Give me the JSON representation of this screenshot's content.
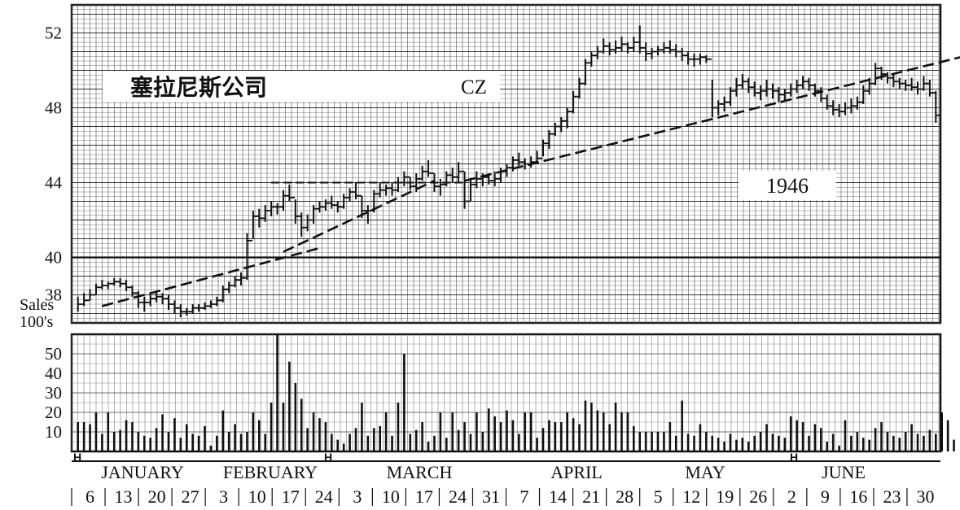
{
  "chart_data": {
    "type": "bar",
    "title": "塞拉尼斯公司",
    "ticker": "CZ",
    "year": "1946",
    "price_axis": {
      "ticks": [
        "52",
        "48",
        "44",
        "40",
        "38"
      ],
      "ylim": [
        36.5,
        53.5
      ]
    },
    "volume_axis": {
      "label_line1": "Sales",
      "label_line2": "100's",
      "ticks": [
        "50",
        "40",
        "30",
        "20",
        "10"
      ],
      "ylim": [
        0,
        60
      ]
    },
    "months": [
      "JANUARY",
      "FEBRUARY",
      "MARCH",
      "APRIL",
      "MAY",
      "JUNE"
    ],
    "week_dates": [
      "6",
      "13",
      "20",
      "27",
      "3",
      "10",
      "17",
      "24",
      "3",
      "10",
      "17",
      "24",
      "31",
      "7",
      "14",
      "21",
      "28",
      "5",
      "12",
      "19",
      "26",
      "2",
      "9",
      "16",
      "23",
      "30"
    ],
    "holiday_marker": "H",
    "grid": true,
    "price_lines": [
      {
        "label": "40",
        "value": 40
      },
      {
        "label": "44",
        "value": 44
      }
    ],
    "trend_lines": [
      {
        "name": "",
        "from": {
          "day": 4,
          "price": 37.4
        },
        "to": {
          "day": 40,
          "price": 40.5
        }
      },
      {
        "name": "",
        "from": {
          "day": 34,
          "price": 40.3
        },
        "to": {
          "day": 59,
          "price": 44.1
        }
      },
      {
        "name": "",
        "from": {
          "day": 64,
          "price": 44.1
        },
        "to": {
          "day": 146,
          "price": 50.7
        }
      }
    ],
    "price_bars": [
      {
        "high": 37.9,
        "low": 37.1,
        "close": 37.5
      },
      {
        "high": 38.1,
        "low": 37.4,
        "close": 37.7
      },
      {
        "high": 38.3,
        "low": 37.7,
        "close": 38.0
      },
      {
        "high": 38.6,
        "low": 38.0,
        "close": 38.4
      },
      {
        "high": 38.8,
        "low": 38.3,
        "close": 38.5
      },
      {
        "high": 38.7,
        "low": 38.3,
        "close": 38.6
      },
      {
        "high": 38.9,
        "low": 38.5,
        "close": 38.7
      },
      {
        "high": 38.9,
        "low": 38.4,
        "close": 38.6
      },
      {
        "high": 38.8,
        "low": 38.2,
        "close": 38.4
      },
      {
        "high": 38.5,
        "low": 37.9,
        "close": 38.1
      },
      {
        "high": 38.2,
        "low": 37.3,
        "close": 37.6
      },
      {
        "high": 37.9,
        "low": 37.1,
        "close": 37.6
      },
      {
        "high": 38.0,
        "low": 37.4,
        "close": 37.8
      },
      {
        "high": 38.2,
        "low": 37.6,
        "close": 37.9
      },
      {
        "high": 38.1,
        "low": 37.5,
        "close": 37.8
      },
      {
        "high": 38.0,
        "low": 37.2,
        "close": 37.5
      },
      {
        "high": 37.7,
        "low": 37.0,
        "close": 37.3
      },
      {
        "high": 37.5,
        "low": 36.8,
        "close": 37.1
      },
      {
        "high": 37.3,
        "low": 36.9,
        "close": 37.1
      },
      {
        "high": 37.5,
        "low": 37.0,
        "close": 37.3
      },
      {
        "high": 37.5,
        "low": 37.1,
        "close": 37.3
      },
      {
        "high": 37.6,
        "low": 37.2,
        "close": 37.4
      },
      {
        "high": 37.7,
        "low": 37.3,
        "close": 37.5
      },
      {
        "high": 37.9,
        "low": 37.4,
        "close": 37.7
      },
      {
        "high": 38.5,
        "low": 37.6,
        "close": 38.3
      },
      {
        "high": 38.7,
        "low": 38.1,
        "close": 38.5
      },
      {
        "high": 39.0,
        "low": 38.4,
        "close": 38.8
      },
      {
        "high": 39.2,
        "low": 38.5,
        "close": 38.9
      },
      {
        "high": 41.3,
        "low": 38.8,
        "close": 40.9
      },
      {
        "high": 42.5,
        "low": 41.0,
        "close": 42.2
      },
      {
        "high": 42.6,
        "low": 41.6,
        "close": 42.1
      },
      {
        "high": 42.8,
        "low": 41.9,
        "close": 42.5
      },
      {
        "high": 43.0,
        "low": 42.2,
        "close": 42.7
      },
      {
        "high": 42.9,
        "low": 42.3,
        "close": 42.7
      },
      {
        "high": 43.6,
        "low": 42.5,
        "close": 43.3
      },
      {
        "high": 43.9,
        "low": 43.0,
        "close": 43.2
      },
      {
        "high": 43.1,
        "low": 41.8,
        "close": 42.2
      },
      {
        "high": 42.4,
        "low": 41.1,
        "close": 41.6
      },
      {
        "high": 42.3,
        "low": 41.4,
        "close": 42.0
      },
      {
        "high": 42.8,
        "low": 41.8,
        "close": 42.6
      },
      {
        "high": 43.0,
        "low": 42.4,
        "close": 42.7
      },
      {
        "high": 43.1,
        "low": 42.5,
        "close": 42.9
      },
      {
        "high": 43.3,
        "low": 42.6,
        "close": 42.8
      },
      {
        "high": 43.0,
        "low": 42.4,
        "close": 42.7
      },
      {
        "high": 43.4,
        "low": 42.6,
        "close": 43.2
      },
      {
        "high": 43.7,
        "low": 43.0,
        "close": 43.5
      },
      {
        "high": 44.0,
        "low": 43.1,
        "close": 43.3
      },
      {
        "high": 43.3,
        "low": 42.1,
        "close": 42.5
      },
      {
        "high": 42.8,
        "low": 41.8,
        "close": 42.5
      },
      {
        "high": 43.6,
        "low": 42.4,
        "close": 43.4
      },
      {
        "high": 44.0,
        "low": 43.2,
        "close": 43.6
      },
      {
        "high": 43.9,
        "low": 43.3,
        "close": 43.7
      },
      {
        "high": 44.0,
        "low": 43.3,
        "close": 43.6
      },
      {
        "high": 44.3,
        "low": 43.5,
        "close": 44.0
      },
      {
        "high": 44.6,
        "low": 43.8,
        "close": 44.3
      },
      {
        "high": 44.3,
        "low": 43.6,
        "close": 43.8
      },
      {
        "high": 44.5,
        "low": 43.5,
        "close": 44.2
      },
      {
        "high": 44.9,
        "low": 44.1,
        "close": 44.6
      },
      {
        "high": 45.2,
        "low": 44.3,
        "close": 44.5
      },
      {
        "high": 44.5,
        "low": 43.5,
        "close": 43.8
      },
      {
        "high": 44.2,
        "low": 43.3,
        "close": 43.9
      },
      {
        "high": 44.6,
        "low": 43.8,
        "close": 44.4
      },
      {
        "high": 44.8,
        "low": 44.0,
        "close": 44.3
      },
      {
        "high": 45.1,
        "low": 44.0,
        "close": 44.6
      },
      {
        "high": 44.6,
        "low": 42.6,
        "close": 43.0
      },
      {
        "high": 44.2,
        "low": 43.0,
        "close": 43.9
      },
      {
        "high": 44.6,
        "low": 43.7,
        "close": 44.2
      },
      {
        "high": 44.5,
        "low": 43.8,
        "close": 44.3
      },
      {
        "high": 44.5,
        "low": 43.9,
        "close": 44.1
      },
      {
        "high": 44.6,
        "low": 43.8,
        "close": 44.2
      },
      {
        "high": 44.8,
        "low": 44.0,
        "close": 44.6
      },
      {
        "high": 45.0,
        "low": 44.3,
        "close": 44.8
      },
      {
        "high": 45.4,
        "low": 44.6,
        "close": 45.2
      },
      {
        "high": 45.6,
        "low": 44.9,
        "close": 45.1
      },
      {
        "high": 45.3,
        "low": 44.7,
        "close": 45.0
      },
      {
        "high": 45.4,
        "low": 44.8,
        "close": 45.1
      },
      {
        "high": 45.7,
        "low": 45.0,
        "close": 45.3
      },
      {
        "high": 46.3,
        "low": 45.4,
        "close": 46.1
      },
      {
        "high": 46.8,
        "low": 45.8,
        "close": 46.6
      },
      {
        "high": 47.2,
        "low": 46.5,
        "close": 47.0
      },
      {
        "high": 47.5,
        "low": 46.7,
        "close": 47.3
      },
      {
        "high": 48.0,
        "low": 46.9,
        "close": 47.8
      },
      {
        "high": 48.9,
        "low": 47.7,
        "close": 48.6
      },
      {
        "high": 49.6,
        "low": 48.5,
        "close": 49.3
      },
      {
        "high": 50.6,
        "low": 49.2,
        "close": 50.4
      },
      {
        "high": 51.0,
        "low": 50.2,
        "close": 50.8
      },
      {
        "high": 51.3,
        "low": 50.6,
        "close": 51.0
      },
      {
        "high": 51.7,
        "low": 50.9,
        "close": 51.3
      },
      {
        "high": 51.5,
        "low": 50.8,
        "close": 51.1
      },
      {
        "high": 51.6,
        "low": 50.9,
        "close": 51.2
      },
      {
        "high": 51.8,
        "low": 51.0,
        "close": 51.4
      },
      {
        "high": 51.5,
        "low": 50.9,
        "close": 51.2
      },
      {
        "high": 51.8,
        "low": 51.0,
        "close": 51.5
      },
      {
        "high": 52.4,
        "low": 50.9,
        "close": 51.2
      },
      {
        "high": 51.5,
        "low": 50.5,
        "close": 50.9
      },
      {
        "high": 51.2,
        "low": 50.6,
        "close": 51.0
      },
      {
        "high": 51.3,
        "low": 50.8,
        "close": 51.1
      },
      {
        "high": 51.5,
        "low": 50.9,
        "close": 51.2
      },
      {
        "high": 51.6,
        "low": 50.9,
        "close": 51.1
      },
      {
        "high": 51.4,
        "low": 50.7,
        "close": 51.0
      },
      {
        "high": 51.2,
        "low": 50.5,
        "close": 50.8
      },
      {
        "high": 51.0,
        "low": 50.3,
        "close": 50.6
      },
      {
        "high": 50.9,
        "low": 50.2,
        "close": 50.6
      },
      {
        "high": 50.9,
        "low": 50.3,
        "close": 50.7
      },
      {
        "high": 50.8,
        "low": 50.4,
        "close": 50.6
      },
      {
        "high": 49.5,
        "low": 47.5,
        "close": 48.0
      },
      {
        "high": 48.4,
        "low": 47.6,
        "close": 48.2
      },
      {
        "high": 48.6,
        "low": 47.8,
        "close": 48.3
      },
      {
        "high": 49.1,
        "low": 48.1,
        "close": 48.9
      },
      {
        "high": 49.6,
        "low": 48.6,
        "close": 49.2
      },
      {
        "high": 49.8,
        "low": 49.0,
        "close": 49.4
      },
      {
        "high": 49.6,
        "low": 48.8,
        "close": 49.1
      },
      {
        "high": 49.4,
        "low": 48.6,
        "close": 48.8
      },
      {
        "high": 49.2,
        "low": 48.4,
        "close": 48.9
      },
      {
        "high": 49.5,
        "low": 48.6,
        "close": 49.0
      },
      {
        "high": 49.3,
        "low": 48.5,
        "close": 48.9
      },
      {
        "high": 49.1,
        "low": 48.3,
        "close": 48.7
      },
      {
        "high": 49.0,
        "low": 48.4,
        "close": 48.8
      },
      {
        "high": 49.3,
        "low": 48.6,
        "close": 49.0
      },
      {
        "high": 49.5,
        "low": 48.8,
        "close": 49.2
      },
      {
        "high": 49.7,
        "low": 49.0,
        "close": 49.4
      },
      {
        "high": 49.6,
        "low": 48.9,
        "close": 49.2
      },
      {
        "high": 49.3,
        "low": 48.6,
        "close": 48.9
      },
      {
        "high": 49.1,
        "low": 48.3,
        "close": 48.5
      },
      {
        "high": 48.7,
        "low": 47.9,
        "close": 48.1
      },
      {
        "high": 48.4,
        "low": 47.6,
        "close": 47.9
      },
      {
        "high": 48.2,
        "low": 47.5,
        "close": 47.8
      },
      {
        "high": 48.3,
        "low": 47.6,
        "close": 48.0
      },
      {
        "high": 48.5,
        "low": 47.7,
        "close": 48.1
      },
      {
        "high": 48.6,
        "low": 47.9,
        "close": 48.3
      },
      {
        "high": 49.2,
        "low": 48.2,
        "close": 48.9
      },
      {
        "high": 49.6,
        "low": 48.7,
        "close": 49.3
      },
      {
        "high": 50.4,
        "low": 49.2,
        "close": 50.1
      },
      {
        "high": 50.2,
        "low": 49.5,
        "close": 49.8
      },
      {
        "high": 49.9,
        "low": 49.3,
        "close": 49.6
      },
      {
        "high": 49.8,
        "low": 49.1,
        "close": 49.4
      },
      {
        "high": 49.6,
        "low": 49.0,
        "close": 49.3
      },
      {
        "high": 49.5,
        "low": 48.9,
        "close": 49.2
      },
      {
        "high": 49.6,
        "low": 48.9,
        "close": 49.1
      },
      {
        "high": 49.4,
        "low": 48.7,
        "close": 49.0
      },
      {
        "high": 49.7,
        "low": 48.9,
        "close": 49.3
      },
      {
        "high": 49.5,
        "low": 48.6,
        "close": 48.8
      },
      {
        "high": 48.9,
        "low": 47.2,
        "close": 47.6
      }
    ],
    "volume": [
      15,
      15,
      14,
      20,
      9,
      20,
      10,
      11,
      16,
      15,
      10,
      8,
      7,
      12,
      19,
      10,
      17,
      7,
      14,
      9,
      8,
      13,
      3,
      8,
      21,
      10,
      14,
      9,
      10,
      20,
      16,
      9,
      25,
      60,
      25,
      46,
      35,
      27,
      12,
      20,
      17,
      15,
      9,
      6,
      4,
      9,
      12,
      25,
      8,
      12,
      13,
      20,
      8,
      25,
      50,
      9,
      11,
      15,
      5,
      8,
      20,
      7,
      20,
      11,
      15,
      9,
      20,
      10,
      22,
      18,
      15,
      21,
      16,
      9,
      20,
      20,
      7,
      12,
      16,
      15,
      15,
      20,
      17,
      14,
      26,
      25,
      21,
      20,
      14,
      25,
      20,
      20,
      13,
      10,
      10,
      10,
      10,
      10,
      15,
      8,
      26,
      9,
      8,
      14,
      10,
      8,
      7,
      5,
      9,
      6,
      7,
      5,
      8,
      10,
      14,
      9,
      8,
      7,
      18,
      16,
      15,
      8,
      14,
      12,
      5,
      9,
      3,
      16,
      8,
      10,
      7,
      6,
      12,
      15,
      10,
      8,
      7,
      10,
      14,
      9,
      8,
      11,
      9,
      20,
      16,
      6
    ]
  }
}
